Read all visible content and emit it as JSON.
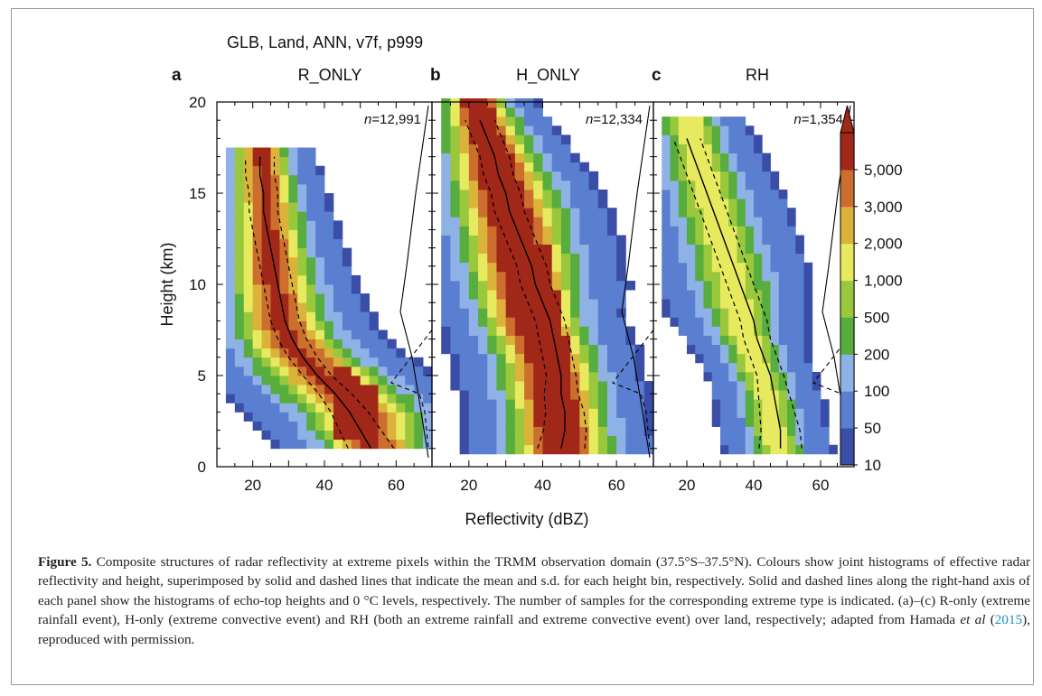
{
  "figure": {
    "header": "GLB, Land, ANN, v7f, p999",
    "panels": [
      {
        "letter": "a",
        "title": "R_ONLY",
        "n_label": "n=12,991",
        "n_prefix": "n",
        "n_value": "=12,991"
      },
      {
        "letter": "b",
        "title": "H_ONLY",
        "n_label": "n=12,334",
        "n_prefix": "n",
        "n_value": "=12,334"
      },
      {
        "letter": "c",
        "title": "RH",
        "n_label": "n=1,354",
        "n_prefix": "n",
        "n_value": "=1,354"
      }
    ],
    "y_axis_label": "Height (km)",
    "x_axis_label": "Reflectivity (dBZ)",
    "y_ticks": [
      "0",
      "5",
      "10",
      "15",
      "20"
    ],
    "x_ticks": [
      "20",
      "40",
      "60"
    ],
    "colorbar_labels": [
      "10",
      "50",
      "100",
      "200",
      "500",
      "1,000",
      "2,000",
      "3,000",
      "5,000"
    ],
    "colors": [
      "#3a4ea8",
      "#5a7fd0",
      "#8fb2e6",
      "#57ad3e",
      "#9ac83c",
      "#e7ea5e",
      "#dcb33a",
      "#cc6e2e",
      "#a12819"
    ]
  },
  "caption": {
    "label": "Figure 5.",
    "text_1": "Composite structures of radar reflectivity at extreme pixels within the TRMM observation domain (37.5°S–37.5°N). Colours show joint histograms of effective radar reflectivity and height, superimposed by solid and dashed lines that indicate the mean and s.d. for each height bin, respectively. Solid and dashed lines along the right-hand axis of each panel show the histograms of echo-top heights and 0 °C levels, respectively. The number of samples for the corresponding extreme type is indicated. (a)–(c) R-only (extreme rainfall event), H-only (extreme convective event) and RH (both an extreme rainfall and extreme convective event) over land, respectively; adapted from Hamada ",
    "et_al": "et al",
    "text_2": " (",
    "citation": "2015",
    "text_3": "), reproduced with permission."
  },
  "chart_data": [
    {
      "type": "heatmap",
      "title": "R_ONLY",
      "panel": "a",
      "n": "12,991",
      "xlabel": "Reflectivity (dBZ)",
      "ylabel": "Height (km)",
      "xlim": [
        10,
        70
      ],
      "ylim": [
        0,
        20
      ],
      "color_levels": [
        10,
        50,
        100,
        200,
        500,
        1000,
        2000,
        3000,
        5000
      ],
      "mean_profile": {
        "height": [
          1,
          2,
          3,
          4,
          5,
          6,
          7,
          8,
          9,
          10,
          11,
          12,
          13,
          14,
          15,
          16,
          17
        ],
        "dbz": [
          53,
          50,
          47,
          43,
          38,
          34,
          31,
          29,
          28,
          27,
          26,
          25,
          24,
          23,
          23,
          22,
          22
        ]
      }
    },
    {
      "type": "heatmap",
      "title": "H_ONLY",
      "panel": "b",
      "n": "12,334",
      "xlabel": "Reflectivity (dBZ)",
      "ylabel": "Height (km)",
      "xlim": [
        10,
        70
      ],
      "ylim": [
        0,
        20
      ],
      "color_levels": [
        10,
        50,
        100,
        200,
        500,
        1000,
        2000,
        3000,
        5000
      ],
      "mean_profile": {
        "height": [
          1,
          2,
          3,
          4,
          5,
          6,
          7,
          8,
          9,
          10,
          11,
          12,
          13,
          14,
          15,
          16,
          17,
          18,
          19
        ],
        "dbz": [
          45,
          46,
          46,
          45,
          45,
          44,
          43,
          42,
          40,
          38,
          37,
          35,
          33,
          31,
          30,
          28,
          27,
          25,
          23
        ]
      }
    },
    {
      "type": "heatmap",
      "title": "RH",
      "panel": "c",
      "n": "1,354",
      "xlabel": "Reflectivity (dBZ)",
      "ylabel": "Height (km)",
      "xlim": [
        10,
        70
      ],
      "ylim": [
        0,
        20
      ],
      "color_levels": [
        10,
        50,
        100,
        200,
        500,
        1000,
        2000,
        3000,
        5000
      ],
      "mean_profile": {
        "height": [
          1,
          2,
          3,
          4,
          5,
          6,
          7,
          8,
          9,
          10,
          11,
          12,
          13,
          14,
          15,
          16,
          17,
          18
        ],
        "dbz": [
          48,
          48,
          47,
          46,
          45,
          43,
          41,
          40,
          38,
          36,
          34,
          32,
          30,
          28,
          26,
          24,
          22,
          20
        ]
      }
    }
  ]
}
